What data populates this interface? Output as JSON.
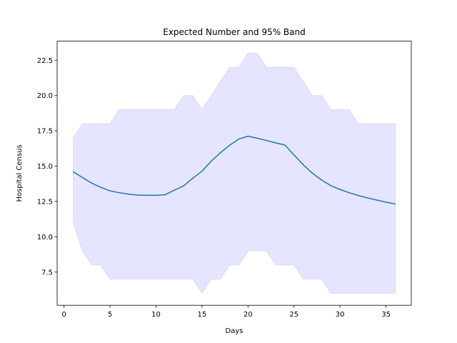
{
  "chart_data": {
    "type": "line",
    "title": "Expected Number and 95% Band",
    "xlabel": "Days",
    "ylabel": "Hospital Census",
    "xlim": [
      -0.75,
      37.75
    ],
    "ylim": [
      5.15,
      23.85
    ],
    "xticks": [
      0,
      5,
      10,
      15,
      20,
      25,
      30,
      35
    ],
    "xtick_labels": [
      "0",
      "5",
      "10",
      "15",
      "20",
      "25",
      "30",
      "35"
    ],
    "yticks": [
      7.5,
      10.0,
      12.5,
      15.0,
      17.5,
      20.0,
      22.5
    ],
    "ytick_labels": [
      "7.5",
      "10.0",
      "12.5",
      "15.0",
      "17.5",
      "20.0",
      "22.5"
    ],
    "grid": false,
    "x": [
      1,
      2,
      3,
      4,
      5,
      6,
      7,
      8,
      9,
      10,
      11,
      12,
      13,
      14,
      15,
      16,
      17,
      18,
      19,
      20,
      21,
      22,
      23,
      24,
      25,
      26,
      27,
      28,
      29,
      30,
      31,
      32,
      33,
      34,
      35,
      36
    ],
    "series": [
      {
        "type": "line",
        "color": "#1f77b4",
        "values": [
          14.6,
          14.2,
          13.8,
          13.5,
          13.25,
          13.12,
          13.02,
          12.95,
          12.94,
          12.93,
          12.98,
          13.3,
          13.6,
          14.15,
          14.65,
          15.35,
          15.95,
          16.48,
          16.92,
          17.12,
          16.98,
          16.82,
          16.65,
          16.5,
          15.8,
          15.1,
          14.5,
          14.02,
          13.62,
          13.35,
          13.12,
          12.92,
          12.75,
          12.6,
          12.45,
          12.32
        ]
      },
      {
        "type": "band",
        "color": "#0000ff",
        "opacity": 0.1,
        "lower": [
          11,
          9,
          8,
          8,
          7,
          7,
          7,
          7,
          7,
          7,
          7,
          7,
          7,
          7,
          6,
          7,
          7,
          8,
          8,
          9,
          9,
          9,
          8,
          8,
          8,
          7,
          7,
          7,
          6,
          6,
          6,
          6,
          6,
          6,
          6,
          6
        ],
        "upper": [
          17,
          18,
          18,
          18,
          18,
          19,
          19,
          19,
          19,
          19,
          19,
          19,
          20,
          20,
          19,
          20,
          21,
          22,
          22,
          23,
          23,
          22,
          22,
          22,
          22,
          21,
          20,
          20,
          19,
          19,
          19,
          18,
          18,
          18,
          18,
          18
        ]
      }
    ]
  }
}
